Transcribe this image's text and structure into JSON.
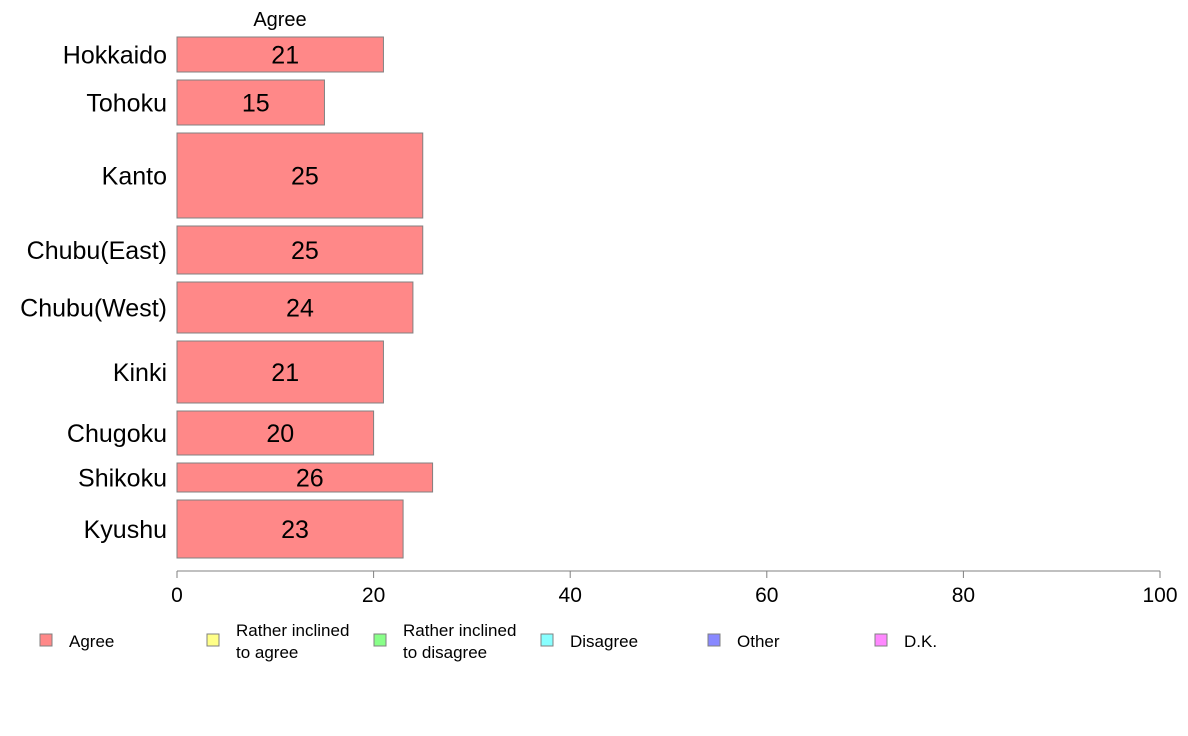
{
  "chart_data": {
    "type": "bar",
    "orientation": "horizontal",
    "stacked": true,
    "column_header": "Agree",
    "categories": [
      "Hokkaido",
      "Tohoku",
      "Kanto",
      "Chubu(East)",
      "Chubu(West)",
      "Kinki",
      "Chugoku",
      "Shikoku",
      "Kyushu"
    ],
    "series": [
      {
        "name": "Agree",
        "color": "#ff8888",
        "values": [
          21,
          15,
          25,
          25,
          24,
          21,
          20,
          26,
          23
        ]
      }
    ],
    "xlim": [
      0,
      100
    ],
    "xticks": [
      0,
      20,
      40,
      60,
      80,
      100
    ],
    "grid": false,
    "legend_position": "bottom",
    "legend": [
      {
        "label": [
          "Agree"
        ],
        "color": "#ff8888"
      },
      {
        "label": [
          "Rather inclined",
          "to agree"
        ],
        "color": "#ffff88"
      },
      {
        "label": [
          "Rather inclined",
          "to disagree"
        ],
        "color": "#88ff88"
      },
      {
        "label": [
          "Disagree"
        ],
        "color": "#88ffff"
      },
      {
        "label": [
          "Other"
        ],
        "color": "#8888ff"
      },
      {
        "label": [
          "D.K."
        ],
        "color": "#ff88ff"
      }
    ]
  }
}
